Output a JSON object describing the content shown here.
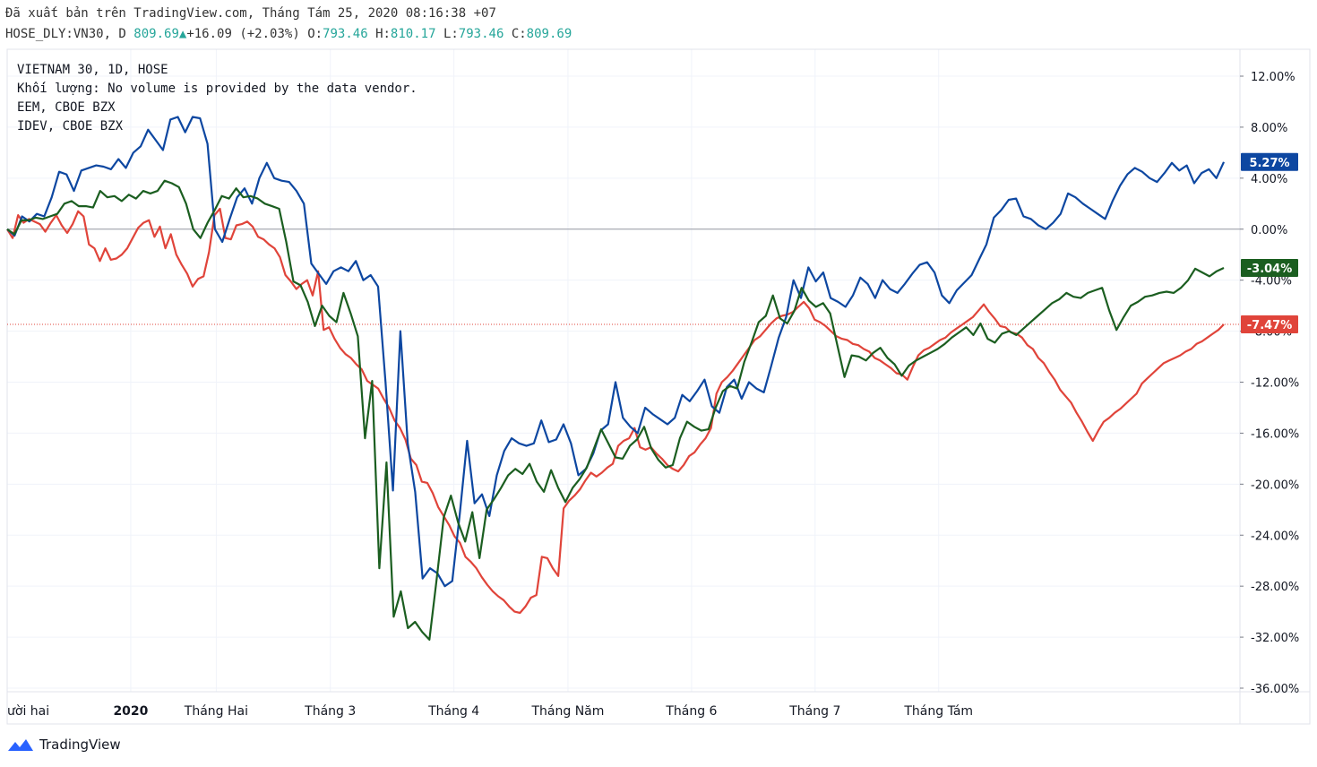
{
  "header": {
    "published": "Đã xuất bản trên TradingView.com, Tháng Tám 25, 2020 08:16:38 +07",
    "symbol": "HOSE_DLY:VN30, D",
    "last": "809.69",
    "change": "+16.09 (+2.03%)",
    "o_label": "O:",
    "o_value": "793.46",
    "h_label": "H:",
    "h_value": "810.17",
    "l_label": "L:",
    "l_value": "793.46",
    "c_label": "C:",
    "c_value": "809.69"
  },
  "legend": {
    "main": "VIETNAM 30, 1D, HOSE",
    "volume": "Khối lượng: No volume is provided by the data vendor.",
    "eem": "EEM, CBOE BZX",
    "idev": "IDEV, CBOE BZX"
  },
  "brand": {
    "name": "TradingView",
    "icon": "tradingview-logo-icon"
  },
  "colors": {
    "vn30": "#e0443a",
    "eem": "#0d47a1",
    "idev": "#1b5e20",
    "up": "#26a69a",
    "grid": "#f0f3fa"
  },
  "chart_data": {
    "type": "line",
    "y_unit": "%",
    "ylim": [
      -36.5,
      13.2
    ],
    "yticks": [
      "12.00%",
      "8.00%",
      "4.00%",
      "0.00%",
      "-4.00%",
      "-8.00%",
      "-12.00%",
      "-16.00%",
      "-20.00%",
      "-24.00%",
      "-28.00%",
      "-32.00%",
      "-36.00%"
    ],
    "x_labels": [
      {
        "label": "ười hai",
        "day": 0,
        "bold": false
      },
      {
        "label": "2020",
        "day": 13,
        "bold": true
      },
      {
        "label": "Tháng Hai",
        "day": 22,
        "bold": false
      },
      {
        "label": "Tháng 3",
        "day": 34,
        "bold": false
      },
      {
        "label": "Tháng 4",
        "day": 47,
        "bold": false
      },
      {
        "label": "Tháng Năm",
        "day": 59,
        "bold": false
      },
      {
        "label": "Tháng 6",
        "day": 72,
        "bold": false
      },
      {
        "label": "Tháng 7",
        "day": 85,
        "bold": false
      },
      {
        "label": "Tháng Tám",
        "day": 98,
        "bold": false
      }
    ],
    "grid": true,
    "series": [
      {
        "key": "vn30",
        "last_label": "-7.47%",
        "values": [
          0,
          -0.7,
          1.1,
          0.5,
          0.8,
          0.6,
          0.4,
          -0.2,
          0.5,
          1.1,
          0.3,
          -0.3,
          0.4,
          1.4,
          1.0,
          -1.2,
          -1.5,
          -2.5,
          -1.5,
          -2.4,
          -2.3,
          -2.0,
          -1.5,
          -0.7,
          0.1,
          0.5,
          0.7,
          -0.6,
          0.2,
          -1.5,
          -0.4,
          -2.0,
          -2.8,
          -3.5,
          -4.5,
          -3.9,
          -3.7,
          -1.8,
          1.1,
          1.6,
          -0.7,
          -0.8,
          0.3,
          0.4,
          0.6,
          0.2,
          -0.6,
          -0.8,
          -1.2,
          -1.5,
          -2.2,
          -3.6,
          -4.1,
          -4.7,
          -4.3,
          -4.0,
          -5.2,
          -3.3,
          -7.9,
          -7.7,
          -8.6,
          -9.3,
          -9.8,
          -10.1,
          -10.6,
          -11.0,
          -11.9,
          -12.2,
          -12.5,
          -13.3,
          -14.0,
          -15.0,
          -15.6,
          -16.5,
          -18.0,
          -18.5,
          -19.8,
          -19.9,
          -20.7,
          -21.8,
          -22.5,
          -23.2,
          -24.1,
          -24.6,
          -25.7,
          -26.1,
          -26.6,
          -27.3,
          -27.9,
          -28.4,
          -28.8,
          -29.1,
          -29.6,
          -30.0,
          -30.1,
          -29.6,
          -28.9,
          -28.7,
          -25.7,
          -25.8,
          -26.6,
          -27.2,
          -21.9,
          -21.3,
          -20.9,
          -20.4,
          -19.7,
          -19.1,
          -19.4,
          -19.1,
          -18.7,
          -18.4,
          -17.0,
          -16.6,
          -16.4,
          -15.6,
          -17.1,
          -17.3,
          -17.1,
          -17.6,
          -18.0,
          -18.5,
          -18.8,
          -19.0,
          -18.5,
          -17.8,
          -17.5,
          -16.9,
          -16.4,
          -15.6,
          -12.9,
          -12.0,
          -11.6,
          -11.1,
          -10.5,
          -9.9,
          -9.3,
          -8.7,
          -8.4,
          -7.9,
          -7.4,
          -7.0,
          -6.8,
          -6.7,
          -6.5,
          -6.1,
          -5.7,
          -6.2,
          -7.1,
          -7.3,
          -7.6,
          -8.0,
          -8.4,
          -8.6,
          -8.7,
          -9.0,
          -9.1,
          -9.4,
          -9.6,
          -10.1,
          -10.3,
          -10.6,
          -10.9,
          -11.3,
          -11.4,
          -11.8,
          -10.8,
          -9.9,
          -9.5,
          -9.3,
          -9.0,
          -8.7,
          -8.5,
          -8.1,
          -7.8,
          -7.5,
          -7.2,
          -6.9,
          -6.4,
          -5.9,
          -6.5,
          -7.0,
          -7.6,
          -7.7,
          -8.1,
          -8.2,
          -8.5,
          -9.1,
          -9.4,
          -10.1,
          -10.5,
          -11.2,
          -11.8,
          -12.6,
          -13.1,
          -13.6,
          -14.4,
          -15.1,
          -15.9,
          -16.6,
          -15.8,
          -15.1,
          -14.8,
          -14.4,
          -14.1,
          -13.7,
          -13.3,
          -12.9,
          -12.1,
          -11.7,
          -11.3,
          -10.9,
          -10.5,
          -10.3,
          -10.1,
          -9.9,
          -9.6,
          -9.4,
          -9.0,
          -8.8,
          -8.5,
          -8.2,
          -7.9,
          -7.47
        ]
      },
      {
        "key": "eem",
        "last_label": "5.27%",
        "values": [
          0,
          -0.5,
          1.0,
          0.6,
          1.2,
          1.0,
          2.5,
          4.5,
          4.3,
          3.0,
          4.6,
          4.8,
          5.0,
          4.9,
          4.7,
          5.5,
          4.8,
          6.0,
          6.5,
          7.8,
          7.0,
          6.2,
          8.6,
          8.8,
          7.6,
          8.8,
          8.7,
          6.7,
          0.0,
          -1.0,
          0.8,
          2.5,
          3.2,
          2.0,
          4.0,
          5.2,
          4.0,
          3.8,
          3.7,
          3.0,
          2.0,
          -2.7,
          -3.5,
          -4.3,
          -3.3,
          -3.0,
          -3.3,
          -2.5,
          -4.0,
          -3.6,
          -4.5,
          -12.0,
          -20.5,
          -8.0,
          -16.8,
          -20.6,
          -27.4,
          -26.6,
          -27.0,
          -28.0,
          -27.6,
          -22.4,
          -16.6,
          -21.5,
          -20.8,
          -22.5,
          -19.3,
          -17.4,
          -16.4,
          -16.8,
          -17.0,
          -16.8,
          -15.0,
          -16.7,
          -16.5,
          -15.3,
          -16.8,
          -19.3,
          -18.8,
          -17.6,
          -15.8,
          -15.3,
          -12.0,
          -14.8,
          -15.5,
          -16.0,
          -14.0,
          -14.5,
          -14.9,
          -15.3,
          -14.8,
          -13.0,
          -13.5,
          -12.7,
          -11.8,
          -13.9,
          -14.4,
          -12.4,
          -11.8,
          -13.3,
          -12.0,
          -12.5,
          -12.8,
          -10.7,
          -8.5,
          -6.9,
          -4.0,
          -5.4,
          -3.0,
          -4.1,
          -3.4,
          -5.4,
          -5.7,
          -6.1,
          -5.2,
          -3.8,
          -4.3,
          -5.4,
          -4.0,
          -4.7,
          -5.0,
          -4.3,
          -3.5,
          -2.8,
          -2.6,
          -3.4,
          -5.2,
          -5.8,
          -4.8,
          -4.2,
          -3.6,
          -2.4,
          -1.2,
          0.9,
          1.5,
          2.3,
          2.4,
          1.0,
          0.8,
          0.3,
          0.0,
          0.5,
          1.2,
          2.8,
          2.5,
          2.0,
          1.6,
          1.2,
          0.8,
          2.2,
          3.4,
          4.3,
          4.8,
          4.5,
          4.0,
          3.7,
          4.4,
          5.2,
          4.6,
          5.0,
          3.6,
          4.4,
          4.7,
          4.0,
          5.27
        ]
      },
      {
        "key": "idev",
        "last_label": "-3.04%",
        "values": [
          0,
          -0.4,
          0.7,
          0.7,
          0.9,
          0.8,
          1.0,
          1.2,
          2.0,
          2.2,
          1.8,
          1.8,
          1.7,
          3.0,
          2.5,
          2.6,
          2.2,
          2.7,
          2.4,
          3.0,
          2.8,
          3.0,
          3.8,
          3.6,
          3.3,
          2.0,
          0.0,
          -0.7,
          0.5,
          1.5,
          2.6,
          2.4,
          3.2,
          2.5,
          2.6,
          2.4,
          2.0,
          1.8,
          1.6,
          -1.0,
          -4.1,
          -4.4,
          -5.7,
          -7.6,
          -6.0,
          -6.8,
          -7.3,
          -5.0,
          -6.6,
          -8.4,
          -16.4,
          -11.9,
          -26.6,
          -18.3,
          -30.4,
          -28.4,
          -31.3,
          -30.8,
          -31.6,
          -32.2,
          -27.5,
          -22.6,
          -20.9,
          -23.0,
          -24.5,
          -22.2,
          -25.8,
          -22.0,
          -21.2,
          -20.3,
          -19.3,
          -18.8,
          -19.2,
          -18.4,
          -19.8,
          -20.6,
          -18.9,
          -20.3,
          -21.4,
          -20.3,
          -19.6,
          -18.7,
          -17.2,
          -15.7,
          -16.8,
          -17.9,
          -18.0,
          -17.0,
          -16.5,
          -15.5,
          -17.2,
          -18.1,
          -18.7,
          -18.5,
          -16.4,
          -15.1,
          -15.5,
          -15.8,
          -15.7,
          -14.0,
          -12.7,
          -12.3,
          -12.5,
          -10.4,
          -8.9,
          -7.3,
          -6.8,
          -5.2,
          -7.0,
          -7.4,
          -6.4,
          -4.6,
          -5.6,
          -6.1,
          -5.8,
          -6.6,
          -9.1,
          -11.6,
          -9.9,
          -10.0,
          -10.3,
          -9.7,
          -9.3,
          -10.1,
          -10.6,
          -11.5,
          -10.7,
          -10.3,
          -10.0,
          -9.7,
          -9.4,
          -9.0,
          -8.5,
          -8.1,
          -7.7,
          -8.3,
          -7.4,
          -8.6,
          -8.9,
          -8.2,
          -8.0,
          -8.3,
          -7.8,
          -7.3,
          -6.8,
          -6.3,
          -5.8,
          -5.5,
          -5.0,
          -5.3,
          -5.4,
          -5.0,
          -4.8,
          -4.6,
          -6.4,
          -7.9,
          -6.9,
          -6.0,
          -5.7,
          -5.3,
          -5.2,
          -5.0,
          -4.9,
          -5.0,
          -4.6,
          -4.0,
          -3.1,
          -3.4,
          -3.7,
          -3.3,
          -3.04
        ]
      }
    ]
  }
}
